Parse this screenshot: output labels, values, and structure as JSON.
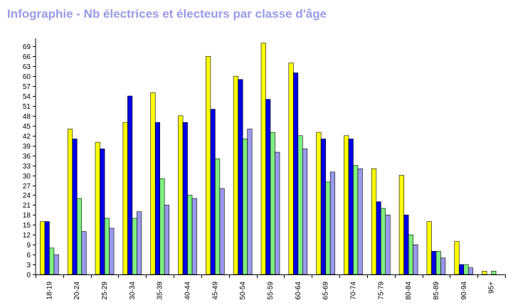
{
  "chart_data": {
    "type": "bar",
    "title": "Infographie - Nb électrices et électeurs par classe d'âge",
    "xlabel": "",
    "ylabel": "",
    "categories": [
      "18-19",
      "20-24",
      "25-29",
      "30-34",
      "35-39",
      "40-44",
      "45-49",
      "50-54",
      "55-59",
      "60-64",
      "65-69",
      "70-74",
      "75-79",
      "80-84",
      "85-89",
      "90-94",
      "95+"
    ],
    "series": [
      {
        "values": [
          16,
          44,
          40,
          46,
          55,
          48,
          66,
          60,
          70,
          64,
          43,
          42,
          32,
          30,
          16,
          10,
          1
        ],
        "color": "#ffff00"
      },
      {
        "values": [
          16,
          41,
          38,
          54,
          46,
          46,
          50,
          59,
          53,
          61,
          41,
          41,
          22,
          18,
          7,
          3,
          0
        ],
        "color": "#0000e6"
      },
      {
        "values": [
          8,
          23,
          17,
          17,
          29,
          24,
          35,
          41,
          43,
          42,
          28,
          33,
          20,
          12,
          7,
          3,
          1
        ],
        "color": "#7fef7f"
      },
      {
        "values": [
          6,
          13,
          14,
          19,
          21,
          23,
          26,
          44,
          37,
          38,
          31,
          32,
          18,
          9,
          5,
          2,
          0
        ],
        "color": "#9999ee"
      }
    ],
    "ylim": [
      0,
      71
    ],
    "y_ticks": [
      0,
      3,
      6,
      9,
      12,
      15,
      18,
      21,
      24,
      27,
      30,
      33,
      36,
      39,
      42,
      45,
      48,
      51,
      54,
      57,
      60,
      63,
      66,
      69
    ],
    "grid": false,
    "legend": "none"
  }
}
